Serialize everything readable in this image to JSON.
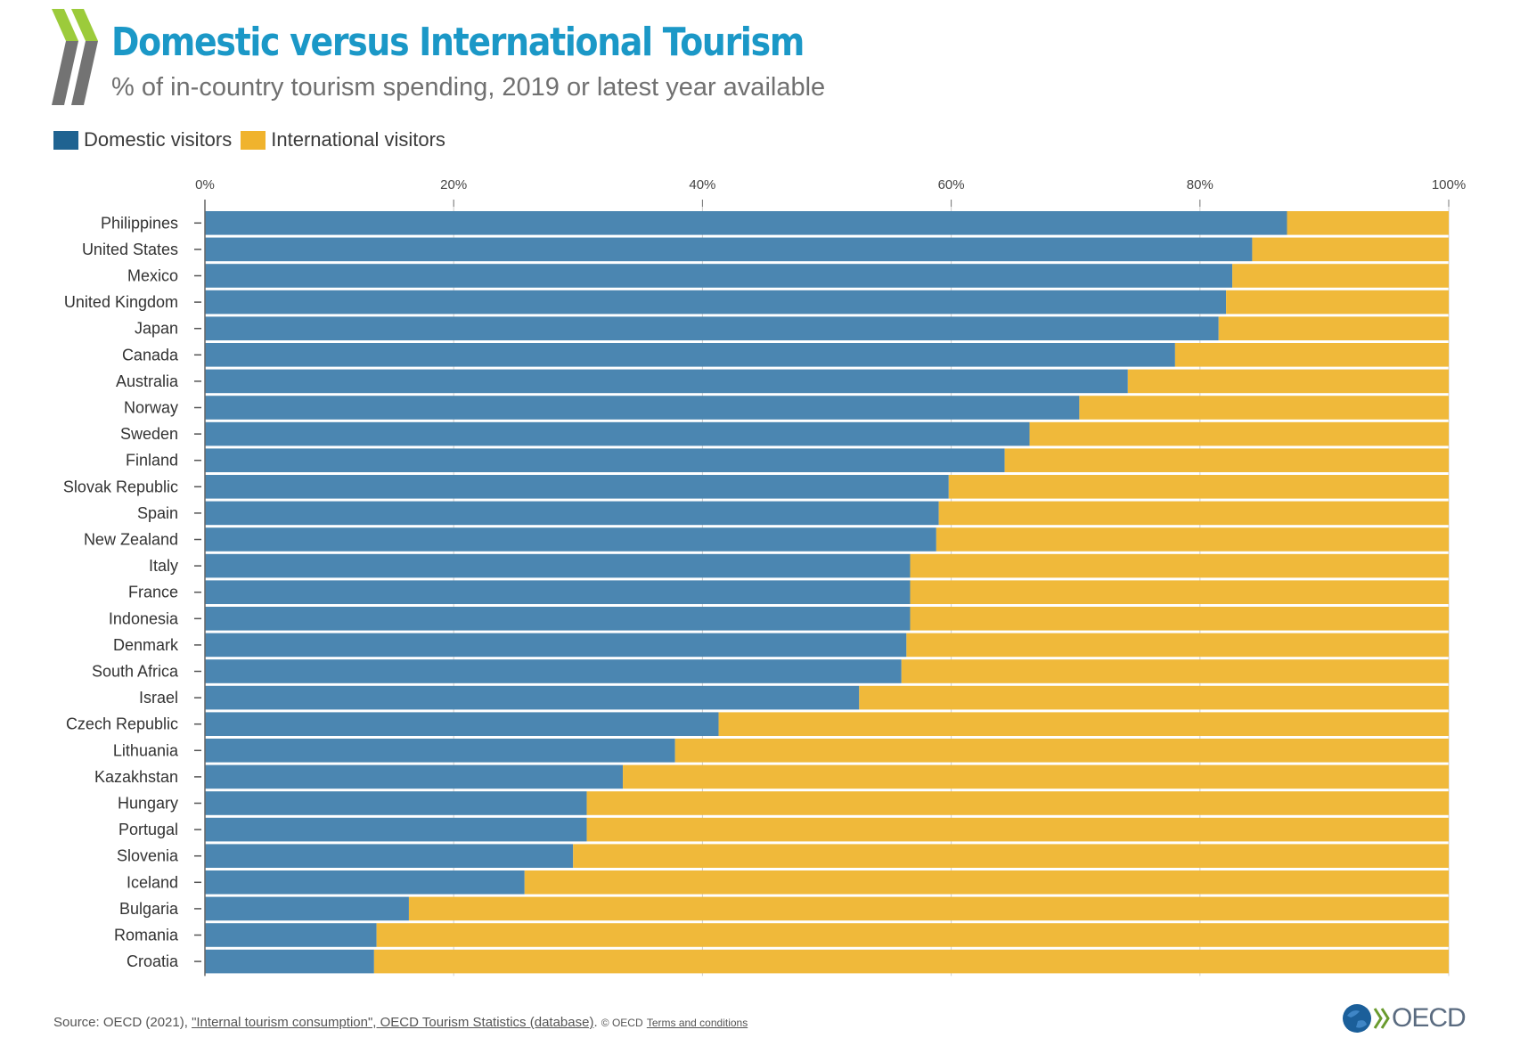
{
  "header": {
    "title": "Domestic versus International Tourism",
    "subtitle": "% of in-country tourism spending, 2019 or latest year available"
  },
  "legend": {
    "items": [
      {
        "label": "Domestic visitors",
        "color": "#1f6391"
      },
      {
        "label": "International visitors",
        "color": "#f0b32d"
      }
    ]
  },
  "footer": {
    "source_prefix": "Source: OECD (2021), ",
    "source_link": "\"Internal tourism consumption\", OECD Tourism Statistics (database)",
    "source_suffix": ".",
    "copyright": "© OECD",
    "terms_link": "Terms and conditions",
    "brand": "OECD"
  },
  "chart_data": {
    "type": "bar",
    "orientation": "horizontal",
    "stacked": true,
    "categories": [
      "Philippines",
      "United States",
      "Mexico",
      "United Kingdom",
      "Japan",
      "Canada",
      "Australia",
      "Norway",
      "Sweden",
      "Finland",
      "Slovak Republic",
      "Spain",
      "New Zealand",
      "Italy",
      "France",
      "Indonesia",
      "Denmark",
      "South Africa",
      "Israel",
      "Czech Republic",
      "Lithuania",
      "Kazakhstan",
      "Hungary",
      "Portugal",
      "Slovenia",
      "Iceland",
      "Bulgaria",
      "Romania",
      "Croatia"
    ],
    "series": [
      {
        "name": "Domestic visitors",
        "color": "#4b86b1",
        "values": [
          87.0,
          84.2,
          82.6,
          82.1,
          81.5,
          78.0,
          74.2,
          70.3,
          66.3,
          64.3,
          59.8,
          59.0,
          58.8,
          56.7,
          56.7,
          56.7,
          56.4,
          56.0,
          52.6,
          41.3,
          37.8,
          33.6,
          30.7,
          30.7,
          29.6,
          25.7,
          16.4,
          13.8,
          13.6
        ]
      },
      {
        "name": "International visitors",
        "color": "#f0b93a",
        "values": [
          13.0,
          15.8,
          17.4,
          17.9,
          18.5,
          22.0,
          25.8,
          29.7,
          33.7,
          35.7,
          40.2,
          41.0,
          41.2,
          43.3,
          43.3,
          43.3,
          43.6,
          44.0,
          47.4,
          58.7,
          62.2,
          66.4,
          69.3,
          69.3,
          70.4,
          74.3,
          83.6,
          86.2,
          86.4
        ]
      }
    ],
    "x_ticks": [
      "0%",
      "20%",
      "40%",
      "60%",
      "80%",
      "100%"
    ],
    "xlim": [
      0,
      100
    ],
    "x_axis_position": "top",
    "grid": true,
    "legend_position": "top-left"
  }
}
